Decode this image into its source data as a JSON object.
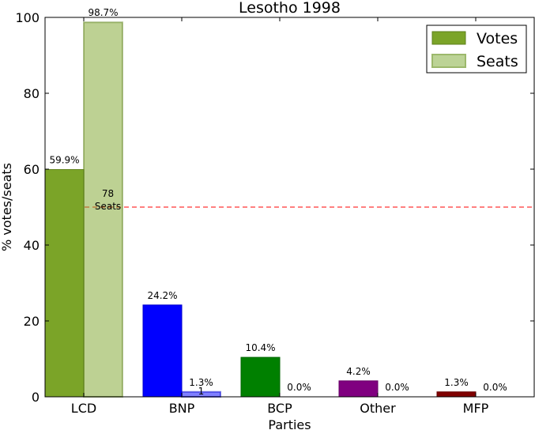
{
  "chart_data": {
    "type": "bar",
    "title": "Lesotho 1998",
    "xlabel": "Parties",
    "ylabel": "% votes/seats",
    "ylim": [
      0,
      100
    ],
    "yticks": [
      0,
      20,
      40,
      60,
      80,
      100
    ],
    "categories": [
      "LCD",
      "BNP",
      "BCP",
      "Other",
      "MFP"
    ],
    "colors": [
      "#7ba428",
      "#0000ff",
      "#008000",
      "#800080",
      "#800000"
    ],
    "series": [
      {
        "name": "Votes",
        "values": [
          59.9,
          24.2,
          10.4,
          4.2,
          1.3
        ],
        "labels": [
          "59.9%",
          "24.2%",
          "10.4%",
          "4.2%",
          "1.3%"
        ],
        "opacity": 1
      },
      {
        "name": "Seats",
        "values": [
          98.7,
          1.3,
          0.0,
          0.0,
          0.0
        ],
        "labels": [
          "98.7%",
          "1.3%",
          "0.0%",
          "0.0%",
          "0.0%"
        ],
        "opacity": 0.5
      }
    ],
    "seat_counts": [
      "78",
      "1",
      "",
      "",
      ""
    ],
    "annotation_word": "Seats",
    "majority_line": {
      "value": 50,
      "color": "#ff0000",
      "style": "dashed"
    },
    "legend": {
      "placement": "top-right",
      "entries": [
        "Votes",
        "Seats"
      ],
      "colors": [
        "#7ba428",
        "#bcd396"
      ]
    },
    "grid": false
  }
}
